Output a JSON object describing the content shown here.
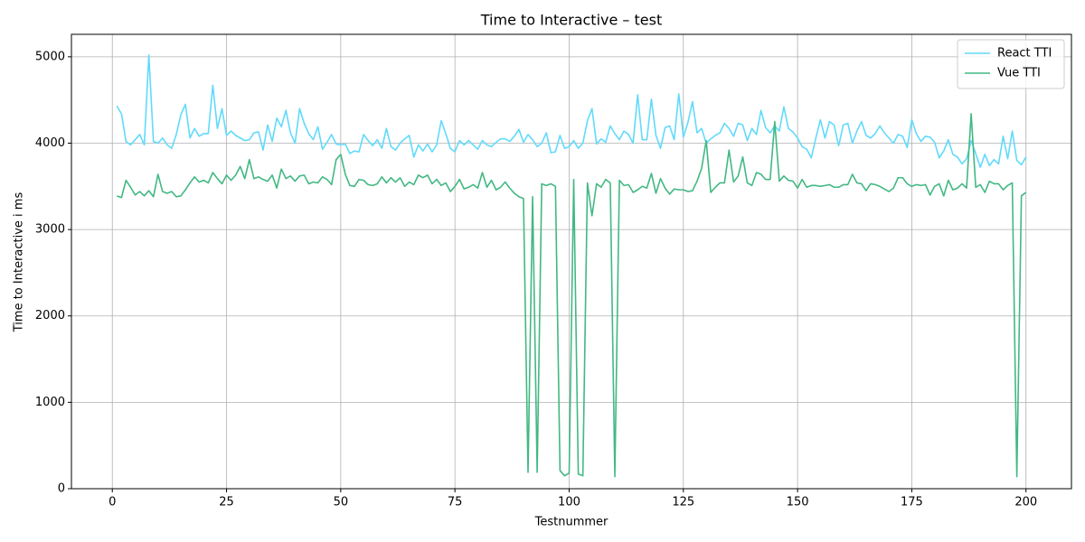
{
  "chart_data": {
    "type": "line",
    "title": "Time to Interactive  – test",
    "xlabel": "Testnummer",
    "ylabel": "Time to Interactive  i ms",
    "x": [
      1,
      2,
      3,
      4,
      5,
      6,
      7,
      8,
      9,
      10,
      11,
      12,
      13,
      14,
      15,
      16,
      17,
      18,
      19,
      20,
      21,
      22,
      23,
      24,
      25,
      26,
      27,
      28,
      29,
      30,
      31,
      32,
      33,
      34,
      35,
      36,
      37,
      38,
      39,
      40,
      41,
      42,
      43,
      44,
      45,
      46,
      47,
      48,
      49,
      50,
      51,
      52,
      53,
      54,
      55,
      56,
      57,
      58,
      59,
      60,
      61,
      62,
      63,
      64,
      65,
      66,
      67,
      68,
      69,
      70,
      71,
      72,
      73,
      74,
      75,
      76,
      77,
      78,
      79,
      80,
      81,
      82,
      83,
      84,
      85,
      86,
      87,
      88,
      89,
      90,
      91,
      92,
      93,
      94,
      95,
      96,
      97,
      98,
      99,
      100,
      101,
      102,
      103,
      104,
      105,
      106,
      107,
      108,
      109,
      110,
      111,
      112,
      113,
      114,
      115,
      116,
      117,
      118,
      119,
      120,
      121,
      122,
      123,
      124,
      125,
      126,
      127,
      128,
      129,
      130,
      131,
      132,
      133,
      134,
      135,
      136,
      137,
      138,
      139,
      140,
      141,
      142,
      143,
      144,
      145,
      146,
      147,
      148,
      149,
      150,
      151,
      152,
      153,
      154,
      155,
      156,
      157,
      158,
      159,
      160,
      161,
      162,
      163,
      164,
      165,
      166,
      167,
      168,
      169,
      170,
      171,
      172,
      173,
      174,
      175,
      176,
      177,
      178,
      179,
      180,
      181,
      182,
      183,
      184,
      185,
      186,
      187,
      188,
      189,
      190,
      191,
      192,
      193,
      194,
      195,
      196,
      197,
      198,
      199,
      200
    ],
    "series": [
      {
        "name": "React TTI",
        "color": "#61dafb",
        "values": [
          4430,
          4340,
          4020,
          3980,
          4040,
          4100,
          3980,
          5020,
          4020,
          4000,
          4060,
          3980,
          3940,
          4100,
          4330,
          4450,
          4060,
          4170,
          4080,
          4110,
          4110,
          4670,
          4170,
          4400,
          4090,
          4140,
          4090,
          4060,
          4030,
          4040,
          4120,
          4130,
          3920,
          4210,
          4020,
          4290,
          4190,
          4380,
          4120,
          4000,
          4400,
          4230,
          4110,
          4040,
          4190,
          3930,
          4010,
          4100,
          3990,
          3980,
          3990,
          3880,
          3910,
          3900,
          4100,
          4030,
          3970,
          4040,
          3940,
          4170,
          3960,
          3920,
          4000,
          4050,
          4090,
          3840,
          3980,
          3910,
          3990,
          3900,
          3980,
          4260,
          4110,
          3940,
          3900,
          4030,
          3980,
          4030,
          3980,
          3930,
          4030,
          3980,
          3960,
          4010,
          4050,
          4050,
          4020,
          4080,
          4160,
          4010,
          4100,
          4040,
          3960,
          4000,
          4120,
          3890,
          3900,
          4090,
          3940,
          3960,
          4030,
          3940,
          4000,
          4260,
          4400,
          3990,
          4050,
          4010,
          4200,
          4110,
          4040,
          4140,
          4100,
          4000,
          4560,
          4040,
          4040,
          4510,
          4090,
          3940,
          4180,
          4200,
          4040,
          4570,
          4070,
          4240,
          4480,
          4120,
          4170,
          4000,
          4050,
          4090,
          4120,
          4230,
          4170,
          4080,
          4230,
          4210,
          4030,
          4170,
          4100,
          4380,
          4180,
          4120,
          4200,
          4140,
          4420,
          4170,
          4130,
          4060,
          3960,
          3930,
          3830,
          4060,
          4270,
          4060,
          4250,
          4210,
          3970,
          4210,
          4230,
          4000,
          4140,
          4250,
          4090,
          4060,
          4110,
          4200,
          4120,
          4060,
          4000,
          4100,
          4080,
          3950,
          4270,
          4110,
          4020,
          4080,
          4070,
          4010,
          3830,
          3910,
          4040,
          3870,
          3840,
          3760,
          3820,
          4030,
          3880,
          3720,
          3870,
          3740,
          3810,
          3760,
          4080,
          3820,
          4140,
          3800,
          3750,
          3840
        ]
      },
      {
        "name": "Vue TTI",
        "color": "#42b883",
        "values": [
          3390,
          3370,
          3570,
          3490,
          3400,
          3440,
          3390,
          3450,
          3380,
          3640,
          3440,
          3420,
          3440,
          3380,
          3390,
          3460,
          3540,
          3610,
          3550,
          3570,
          3540,
          3660,
          3590,
          3530,
          3630,
          3570,
          3630,
          3730,
          3590,
          3810,
          3590,
          3610,
          3580,
          3560,
          3630,
          3480,
          3700,
          3590,
          3620,
          3560,
          3620,
          3630,
          3530,
          3550,
          3540,
          3610,
          3580,
          3520,
          3810,
          3870,
          3640,
          3510,
          3500,
          3580,
          3570,
          3520,
          3510,
          3530,
          3610,
          3540,
          3600,
          3550,
          3600,
          3500,
          3550,
          3520,
          3630,
          3600,
          3630,
          3530,
          3580,
          3510,
          3540,
          3440,
          3500,
          3580,
          3470,
          3490,
          3520,
          3480,
          3660,
          3490,
          3570,
          3460,
          3490,
          3550,
          3480,
          3420,
          3380,
          3360,
          190,
          3380,
          190,
          3530,
          3510,
          3530,
          3500,
          210,
          150,
          180,
          3580,
          170,
          150,
          3540,
          3160,
          3530,
          3490,
          3580,
          3540,
          140,
          3570,
          3510,
          3520,
          3430,
          3460,
          3500,
          3480,
          3650,
          3420,
          3590,
          3480,
          3410,
          3470,
          3460,
          3460,
          3440,
          3450,
          3560,
          3710,
          4030,
          3430,
          3490,
          3540,
          3540,
          3920,
          3550,
          3620,
          3840,
          3540,
          3510,
          3660,
          3640,
          3580,
          3580,
          4250,
          3560,
          3620,
          3570,
          3560,
          3480,
          3580,
          3490,
          3510,
          3510,
          3500,
          3510,
          3520,
          3490,
          3490,
          3520,
          3520,
          3640,
          3540,
          3530,
          3450,
          3530,
          3520,
          3500,
          3470,
          3440,
          3480,
          3600,
          3600,
          3530,
          3500,
          3520,
          3510,
          3520,
          3400,
          3500,
          3530,
          3390,
          3570,
          3460,
          3480,
          3530,
          3480,
          4340,
          3490,
          3520,
          3430,
          3560,
          3530,
          3530,
          3460,
          3510,
          3540,
          140,
          3390,
          3430
        ]
      }
    ],
    "xlim": [
      -8.95,
      209.95
    ],
    "ylim": [
      0,
      5260
    ],
    "xticks": [
      0,
      25,
      50,
      75,
      100,
      125,
      150,
      175,
      200
    ],
    "yticks": [
      0,
      1000,
      2000,
      3000,
      4000,
      5000
    ],
    "grid": true,
    "legend": "upper right"
  }
}
